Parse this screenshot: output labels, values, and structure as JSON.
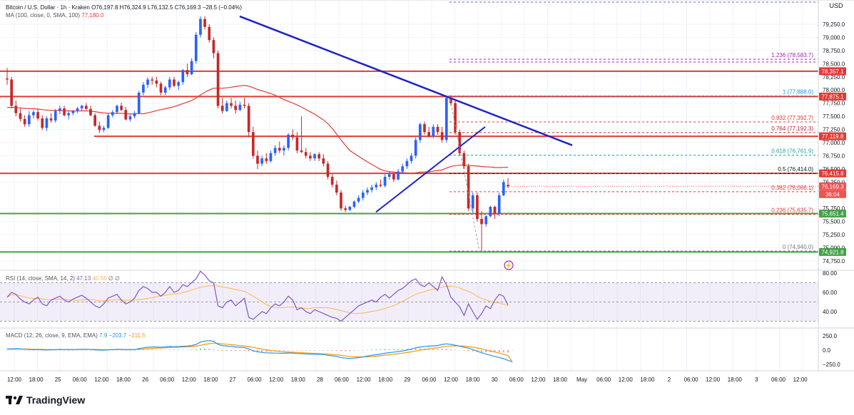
{
  "header": {
    "main": "Bitcoin / U.S. Dollar · 1h · Kraken",
    "o": "O76,197.8",
    "h": "H76,324.9",
    "l": "L76,132.5",
    "c": "C76,169.3",
    "chg": "−28.5 (−0.04%)",
    "ma_label": "MA (100, close, 0, SMA, 100)",
    "ma_value": "77,180.0",
    "rsi_label": "RSI (14, close, SMA, 14, 2)",
    "rsi_v1": "47.13",
    "rsi_v2": "40.58",
    "rsi_v3": "∅",
    "rsi_v4": "∅",
    "macd_label": "MACD (12, 26, close, 9, EMA, EMA)",
    "macd_v1": "7.9",
    "macd_v2": "−203.7",
    "macd_v3": "−211.5"
  },
  "price_axis": {
    "currency": "USD",
    "ticks": [
      "79,250.0",
      "79,000.0",
      "78,750.0",
      "78,500.0",
      "78,250.0",
      "78,000.0",
      "77,750.0",
      "77,500.0",
      "77,250.0",
      "77,000.0",
      "76,750.0",
      "76,500.0",
      "76,250.0",
      "75,750.0",
      "75,500.0",
      "75,250.0",
      "75,000.0",
      "74,750.0"
    ],
    "badges": [
      {
        "text": "78,357.1",
        "color": "#e53935"
      },
      {
        "text": "77,875.1",
        "color": "#e53935"
      },
      {
        "text": "77,119.8",
        "color": "#e53935"
      },
      {
        "text": "76,415.8",
        "color": "#e53935"
      },
      {
        "text": "76,169.3",
        "color": "#ef5350"
      },
      {
        "text": "36:04",
        "color": "#ef5350"
      },
      {
        "text": "75,651.4",
        "color": "#43a047"
      },
      {
        "text": "74,921.8",
        "color": "#43a047"
      }
    ]
  },
  "rsi_axis": [
    "80.00",
    "60.00",
    "40.00"
  ],
  "macd_axis": [
    "250.0",
    "0.0",
    "−250.0"
  ],
  "time_axis": [
    "12:00",
    "18:00",
    "25",
    "06:00",
    "12:00",
    "18:00",
    "26",
    "06:00",
    "12:00",
    "18:00",
    "27",
    "06:00",
    "12:00",
    "18:00",
    "28",
    "06:00",
    "12:00",
    "18:00",
    "29",
    "06:00",
    "12:00",
    "18:00",
    "30",
    "06:00",
    "12:00",
    "18:00",
    "May",
    "06:00",
    "12:00",
    "18:00",
    "2",
    "06:00",
    "12:00",
    "18:00",
    "3",
    "06:00",
    "12:00"
  ],
  "fib_labels": [
    {
      "text": "1.236 (78,583.7)",
      "color": "#9c27b0"
    },
    {
      "text": "1 (77,888.0)",
      "color": "#2196f3"
    },
    {
      "text": "0.832 (77,392.7)",
      "color": "#e53935"
    },
    {
      "text": "0.764 (77,192.3)",
      "color": "#c62828"
    },
    {
      "text": "0.618 (76,761.9)",
      "color": "#26a69a"
    },
    {
      "text": "0.5 (76,414.0)",
      "color": "#131722"
    },
    {
      "text": "0.382 (76,066.1)",
      "color": "#e53935"
    },
    {
      "text": "0.236 (75,635.7)",
      "color": "#e53935"
    },
    {
      "text": "0 (74,940.0)",
      "color": "#787b86"
    }
  ],
  "brand": "TradingView",
  "colors": {
    "up": "#2962ff",
    "down": "#c62828",
    "support": "#43a047",
    "resistance": "#e53935",
    "trend": "#1e22c8",
    "ma": "#e53935",
    "rsi": "#7e57c2",
    "macd": "#2196f3",
    "signal": "#ff9800"
  },
  "chart_data": {
    "type": "candlestick",
    "symbol": "BTCUSD",
    "interval": "1h",
    "ylim": [
      74750,
      79400
    ],
    "horizontal_levels": [
      78357.1,
      77875.1,
      77119.8,
      76415.8,
      75651.4,
      74921.8
    ],
    "candles": [
      [
        78220,
        78420,
        78100,
        78200
      ],
      [
        78200,
        78250,
        77650,
        77700
      ],
      [
        77700,
        77800,
        77500,
        77560
      ],
      [
        77560,
        77650,
        77400,
        77450
      ],
      [
        77450,
        77520,
        77300,
        77350
      ],
      [
        77350,
        77600,
        77300,
        77520
      ],
      [
        77520,
        77620,
        77460,
        77580
      ],
      [
        77580,
        77630,
        77420,
        77460
      ],
      [
        77460,
        77520,
        77240,
        77280
      ],
      [
        77280,
        77500,
        77220,
        77460
      ],
      [
        77460,
        77560,
        77380,
        77420
      ],
      [
        77420,
        77640,
        77380,
        77600
      ],
      [
        77600,
        77700,
        77540,
        77650
      ],
      [
        77650,
        77700,
        77500,
        77520
      ],
      [
        77520,
        77600,
        77440,
        77560
      ],
      [
        77560,
        77620,
        77520,
        77600
      ],
      [
        77600,
        77680,
        77560,
        77650
      ],
      [
        77650,
        77720,
        77600,
        77700
      ],
      [
        77700,
        77750,
        77620,
        77640
      ],
      [
        77640,
        77700,
        77500,
        77520
      ],
      [
        77520,
        77560,
        77300,
        77320
      ],
      [
        77320,
        77400,
        77180,
        77240
      ],
      [
        77240,
        77320,
        77200,
        77280
      ],
      [
        77280,
        77560,
        77260,
        77520
      ],
      [
        77520,
        77620,
        77480,
        77580
      ],
      [
        77580,
        77720,
        77540,
        77700
      ],
      [
        77700,
        77760,
        77600,
        77620
      ],
      [
        77620,
        77680,
        77420,
        77440
      ],
      [
        77440,
        77540,
        77400,
        77500
      ],
      [
        77500,
        77600,
        77460,
        77560
      ],
      [
        77560,
        77980,
        77540,
        77950
      ],
      [
        77950,
        78150,
        77900,
        78100
      ],
      [
        78100,
        78240,
        78040,
        78200
      ],
      [
        78200,
        78250,
        78100,
        78180
      ],
      [
        78180,
        78250,
        78050,
        78120
      ],
      [
        78120,
        78160,
        77900,
        77950
      ],
      [
        77950,
        78080,
        77900,
        78050
      ],
      [
        78050,
        78250,
        78000,
        78200
      ],
      [
        78200,
        78250,
        78050,
        78080
      ],
      [
        78080,
        78180,
        78000,
        78150
      ],
      [
        78150,
        78400,
        78100,
        78380
      ],
      [
        78380,
        78500,
        78250,
        78300
      ],
      [
        78300,
        78600,
        78280,
        78550
      ],
      [
        78550,
        79100,
        78500,
        79050
      ],
      [
        79050,
        79400,
        79000,
        79350
      ],
      [
        79350,
        79400,
        79150,
        79200
      ],
      [
        79200,
        79250,
        78900,
        78950
      ],
      [
        78950,
        79000,
        78600,
        78700
      ],
      [
        78700,
        78750,
        77650,
        77700
      ],
      [
        77700,
        77850,
        77550,
        77600
      ],
      [
        77600,
        77800,
        77580,
        77750
      ],
      [
        77750,
        77850,
        77650,
        77700
      ],
      [
        77700,
        77800,
        77550,
        77620
      ],
      [
        77620,
        77780,
        77600,
        77720
      ],
      [
        77720,
        77850,
        77650,
        77700
      ],
      [
        77700,
        77750,
        77100,
        77200
      ],
      [
        77200,
        77300,
        76700,
        76750
      ],
      [
        76750,
        76850,
        76500,
        76600
      ],
      [
        76600,
        76750,
        76550,
        76700
      ],
      [
        76700,
        76800,
        76600,
        76650
      ],
      [
        76650,
        76850,
        76620,
        76800
      ],
      [
        76800,
        76950,
        76750,
        76900
      ],
      [
        76900,
        77020,
        76800,
        76850
      ],
      [
        76850,
        76950,
        76750,
        76900
      ],
      [
        76900,
        77180,
        76850,
        77150
      ],
      [
        77150,
        77250,
        77050,
        77100
      ],
      [
        77100,
        77200,
        76800,
        76850
      ],
      [
        76850,
        77500,
        76800,
        76820
      ],
      [
        76820,
        76900,
        76700,
        76750
      ],
      [
        76750,
        76820,
        76650,
        76700
      ],
      [
        76700,
        76800,
        76650,
        76780
      ],
      [
        76780,
        76820,
        76650,
        76700
      ],
      [
        76700,
        76780,
        76550,
        76600
      ],
      [
        76600,
        76650,
        76300,
        76350
      ],
      [
        76350,
        76400,
        76150,
        76200
      ],
      [
        76200,
        76280,
        76000,
        76050
      ],
      [
        76050,
        76100,
        75700,
        75750
      ],
      [
        75750,
        75800,
        75680,
        75720
      ],
      [
        75720,
        75800,
        75700,
        75780
      ],
      [
        75780,
        75900,
        75750,
        75880
      ],
      [
        75880,
        76000,
        75850,
        75950
      ],
      [
        75950,
        76100,
        75900,
        76050
      ],
      [
        76050,
        76150,
        76000,
        76100
      ],
      [
        76100,
        76200,
        76050,
        76150
      ],
      [
        76150,
        76250,
        76100,
        76200
      ],
      [
        76200,
        76300,
        76150,
        76180
      ],
      [
        76180,
        76400,
        76150,
        76350
      ],
      [
        76350,
        76450,
        76300,
        76400
      ],
      [
        76400,
        76420,
        76250,
        76300
      ],
      [
        76300,
        76500,
        76280,
        76450
      ],
      [
        76450,
        76600,
        76400,
        76550
      ],
      [
        76550,
        76700,
        76500,
        76650
      ],
      [
        76650,
        76800,
        76600,
        76750
      ],
      [
        76750,
        77100,
        76700,
        77050
      ],
      [
        77050,
        77380,
        77000,
        77350
      ],
      [
        77350,
        77400,
        77150,
        77200
      ],
      [
        77200,
        77300,
        77100,
        77120
      ],
      [
        77120,
        77350,
        77080,
        77300
      ],
      [
        77300,
        77350,
        77150,
        77200
      ],
      [
        77200,
        77300,
        77000,
        77050
      ],
      [
        77050,
        77880,
        77000,
        77850
      ],
      [
        77850,
        77900,
        77700,
        77750
      ],
      [
        77750,
        77800,
        77150,
        77200
      ],
      [
        77200,
        77250,
        76750,
        76800
      ],
      [
        76800,
        76850,
        76500,
        76550
      ],
      [
        76550,
        76600,
        75700,
        75750
      ],
      [
        75750,
        76050,
        75650,
        76000
      ],
      [
        76000,
        76050,
        75500,
        75550
      ],
      [
        75550,
        75700,
        74940,
        75450
      ],
      [
        75450,
        75620,
        75400,
        75600
      ],
      [
        75600,
        75800,
        75580,
        75780
      ],
      [
        75780,
        75800,
        75550,
        75650
      ],
      [
        75650,
        76050,
        75600,
        76000
      ],
      [
        76000,
        76300,
        75980,
        76250
      ],
      [
        76197.8,
        76324.9,
        76132.5,
        76169.3
      ]
    ],
    "rsi": [
      55,
      60,
      58,
      53,
      50,
      48,
      52,
      55,
      48,
      46,
      52,
      54,
      56,
      52,
      50,
      53,
      55,
      57,
      54,
      50,
      46,
      44,
      48,
      54,
      56,
      58,
      52,
      48,
      50,
      54,
      62,
      66,
      64,
      60,
      60,
      56,
      60,
      66,
      60,
      62,
      68,
      66,
      70,
      74,
      82,
      78,
      72,
      70,
      46,
      44,
      50,
      52,
      46,
      50,
      54,
      34,
      32,
      36,
      40,
      38,
      44,
      48,
      46,
      50,
      56,
      52,
      42,
      44,
      40,
      38,
      42,
      40,
      38,
      36,
      34,
      33,
      30,
      34,
      38,
      42,
      46,
      48,
      50,
      52,
      50,
      55,
      58,
      54,
      58,
      62,
      64,
      68,
      72,
      74,
      68,
      66,
      70,
      66,
      62,
      76,
      68,
      55,
      50,
      45,
      36,
      48,
      40,
      32,
      38,
      46,
      43,
      52,
      58,
      56,
      47
    ],
    "macd": [
      20,
      22,
      25,
      20,
      15,
      10,
      8,
      10,
      5,
      2,
      5,
      8,
      12,
      10,
      8,
      10,
      12,
      15,
      14,
      10,
      5,
      0,
      0,
      5,
      10,
      15,
      12,
      8,
      8,
      10,
      25,
      40,
      50,
      55,
      55,
      52,
      55,
      62,
      60,
      62,
      68,
      70,
      80,
      100,
      140,
      160,
      165,
      155,
      100,
      80,
      70,
      65,
      55,
      50,
      45,
      20,
      -10,
      -30,
      -40,
      -48,
      -50,
      -52,
      -54,
      -55,
      -50,
      -52,
      -60,
      -62,
      -66,
      -70,
      -72,
      -74,
      -78,
      -90,
      -100,
      -110,
      -130,
      -140,
      -145,
      -140,
      -130,
      -120,
      -105,
      -90,
      -80,
      -70,
      -55,
      -45,
      -35,
      -25,
      -15,
      0,
      20,
      40,
      55,
      65,
      70,
      75,
      80,
      100,
      110,
      100,
      85,
      70,
      50,
      35,
      10,
      -20,
      -45,
      -70,
      -90,
      -110,
      -130,
      -150,
      -180,
      -203.7
    ],
    "signal": [
      15,
      17,
      19,
      20,
      19,
      17,
      15,
      14,
      12,
      10,
      9,
      9,
      10,
      10,
      10,
      10,
      10,
      11,
      12,
      12,
      11,
      10,
      8,
      7,
      8,
      9,
      10,
      10,
      10,
      10,
      13,
      18,
      25,
      30,
      35,
      38,
      41,
      45,
      48,
      51,
      55,
      58,
      62,
      70,
      84,
      100,
      113,
      122,
      118,
      110,
      102,
      95,
      87,
      80,
      73,
      62,
      48,
      33,
      18,
      5,
      -6,
      -15,
      -23,
      -30,
      -34,
      -38,
      -42,
      -46,
      -50,
      -54,
      -58,
      -61,
      -65,
      -70,
      -76,
      -83,
      -92,
      -102,
      -110,
      -116,
      -119,
      -119,
      -117,
      -112,
      -106,
      -99,
      -90,
      -81,
      -72,
      -62,
      -53,
      -42,
      -30,
      -16,
      -2,
      11,
      23,
      33,
      42,
      54,
      65,
      72,
      75,
      74,
      70,
      63,
      52,
      38,
      22,
      4,
      -15,
      -34,
      -53,
      -72,
      -94,
      -211.5
    ]
  }
}
